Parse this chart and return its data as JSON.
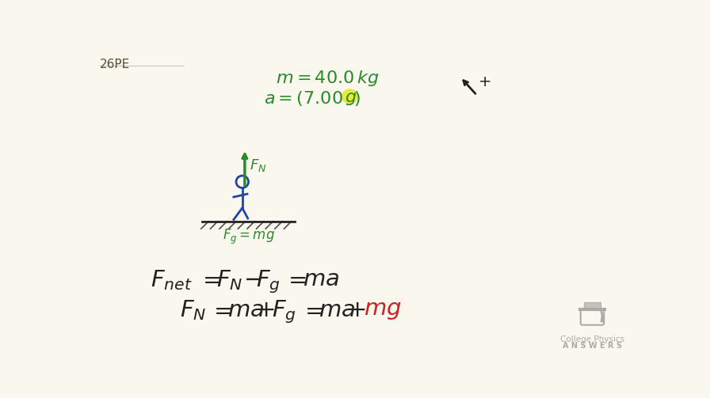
{
  "bg_color": "#faf8ee",
  "title_label": "26PE",
  "title_color": "#5a4a3a",
  "green_color": "#2a8a2a",
  "blue_color": "#2244aa",
  "red_color": "#cc2222",
  "black_color": "#222222",
  "gray_color": "#999999",
  "highlight_color": "#e8e840",
  "cap_color": "#aaaaaa",
  "logo_text1": "College Physics",
  "logo_text2": "A N S W E R S"
}
